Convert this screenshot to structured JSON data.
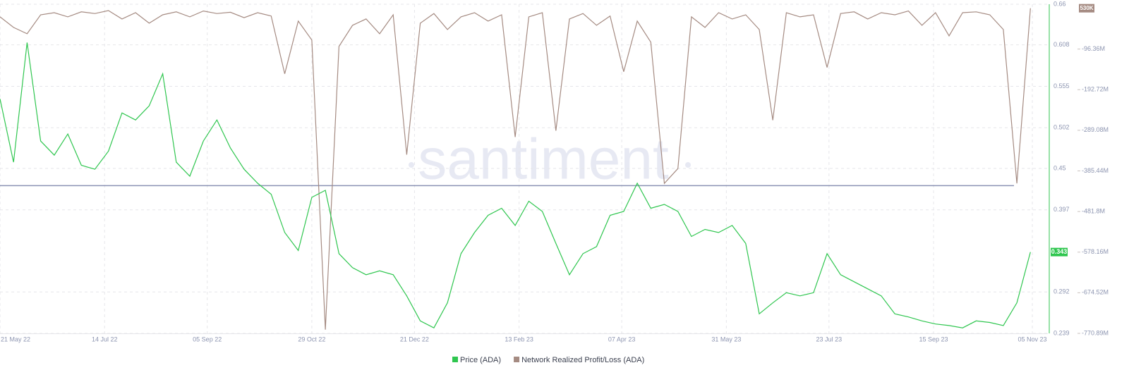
{
  "chart_data": {
    "type": "line",
    "watermark": "santiment",
    "x": [
      "2022-05-21",
      "2022-05-28",
      "2022-06-04",
      "2022-06-11",
      "2022-06-18",
      "2022-06-25",
      "2022-07-02",
      "2022-07-09",
      "2022-07-16",
      "2022-07-23",
      "2022-07-30",
      "2022-08-06",
      "2022-08-13",
      "2022-08-20",
      "2022-08-27",
      "2022-09-03",
      "2022-09-10",
      "2022-09-17",
      "2022-09-24",
      "2022-10-01",
      "2022-10-08",
      "2022-10-15",
      "2022-10-22",
      "2022-10-29",
      "2022-11-05",
      "2022-11-12",
      "2022-11-19",
      "2022-11-26",
      "2022-12-03",
      "2022-12-10",
      "2022-12-17",
      "2022-12-24",
      "2022-12-31",
      "2023-01-07",
      "2023-01-14",
      "2023-01-21",
      "2023-01-28",
      "2023-02-04",
      "2023-02-11",
      "2023-02-18",
      "2023-02-25",
      "2023-03-04",
      "2023-03-11",
      "2023-03-18",
      "2023-03-25",
      "2023-04-01",
      "2023-04-08",
      "2023-04-15",
      "2023-04-22",
      "2023-04-29",
      "2023-05-06",
      "2023-05-13",
      "2023-05-20",
      "2023-05-27",
      "2023-06-03",
      "2023-06-10",
      "2023-06-17",
      "2023-06-24",
      "2023-07-01",
      "2023-07-08",
      "2023-07-15",
      "2023-07-22",
      "2023-07-29",
      "2023-08-05",
      "2023-08-12",
      "2023-08-19",
      "2023-08-26",
      "2023-09-02",
      "2023-09-09",
      "2023-09-16",
      "2023-09-23",
      "2023-09-30",
      "2023-10-07",
      "2023-10-14",
      "2023-10-21",
      "2023-10-28",
      "2023-11-04"
    ],
    "xlim": [
      "2022-05-21",
      "2023-11-13"
    ],
    "xticks": [
      {
        "value": "2022-05-21",
        "label": "21 May 22"
      },
      {
        "value": "2022-07-14",
        "label": "14 Jul 22"
      },
      {
        "value": "2022-09-05",
        "label": "05 Sep 22"
      },
      {
        "value": "2022-10-29",
        "label": "29 Oct 22"
      },
      {
        "value": "2022-12-21",
        "label": "21 Dec 22"
      },
      {
        "value": "2023-02-13",
        "label": "13 Feb 23"
      },
      {
        "value": "2023-04-07",
        "label": "07 Apr 23"
      },
      {
        "value": "2023-05-31",
        "label": "31 May 23"
      },
      {
        "value": "2023-07-23",
        "label": "23 Jul 23"
      },
      {
        "value": "2023-09-15",
        "label": "15 Sep 23"
      },
      {
        "value": "2023-11-05",
        "label": "05 Nov 23"
      }
    ],
    "ylim": [
      0.239,
      0.66
    ],
    "yticks": [
      0.239,
      0.292,
      0.397,
      0.45,
      0.502,
      0.555,
      0.608,
      0.66
    ],
    "y2lim": [
      -770890000,
      10000000
    ],
    "y2ticks": [
      {
        "value": -96360000,
        "label": "-96.36M"
      },
      {
        "value": -192720000,
        "label": "-192.72M"
      },
      {
        "value": -289080000,
        "label": "-289.08M"
      },
      {
        "value": -385440000,
        "label": "-385.44M"
      },
      {
        "value": -481800000,
        "label": "-481.8M"
      },
      {
        "value": -578160000,
        "label": "-578.16M"
      },
      {
        "value": -674520000,
        "label": "-674.52M"
      },
      {
        "value": -770890000,
        "label": "-770.89M"
      }
    ],
    "grid": true,
    "hline": {
      "value": 0.428,
      "color": "#8b93b4"
    },
    "series": [
      {
        "name": "Price (ADA)",
        "color": "#2fc64f",
        "values": [
          0.539,
          0.458,
          0.611,
          0.485,
          0.467,
          0.494,
          0.454,
          0.449,
          0.472,
          0.521,
          0.512,
          0.53,
          0.571,
          0.458,
          0.44,
          0.485,
          0.512,
          0.476,
          0.449,
          0.431,
          0.417,
          0.368,
          0.345,
          0.413,
          0.422,
          0.341,
          0.323,
          0.314,
          0.319,
          0.314,
          0.287,
          0.255,
          0.246,
          0.278,
          0.341,
          0.368,
          0.39,
          0.399,
          0.377,
          0.408,
          0.395,
          0.354,
          0.314,
          0.341,
          0.35,
          0.39,
          0.395,
          0.431,
          0.399,
          0.404,
          0.395,
          0.363,
          0.372,
          0.368,
          0.377,
          0.354,
          0.264,
          0.278,
          0.291,
          0.287,
          0.291,
          0.341,
          0.314,
          0.305,
          0.296,
          0.287,
          0.264,
          0.26,
          0.255,
          0.251,
          0.249,
          0.246,
          0.255,
          0.253,
          0.249,
          0.278,
          0.343
        ]
      },
      {
        "name": "Network Realized Profit/Loss (ADA)",
        "color": "#a58b82",
        "axis": "y2",
        "values": [
          -20000000.0,
          -45000000.0,
          -60000000.0,
          -15000000.0,
          -10000000.0,
          -20000000.0,
          -8000000.0,
          -12000000.0,
          -5000000.0,
          -25000000.0,
          -10000000.0,
          -35000000.0,
          -15000000.0,
          -8000000.0,
          -20000000.0,
          -6000000.0,
          -12000000.0,
          -9000000.0,
          -22000000.0,
          -10000000.0,
          -18000000.0,
          -155000000.0,
          -30000000.0,
          -75000000.0,
          -762000000.0,
          -90000000.0,
          -40000000.0,
          -25000000.0,
          -60000000.0,
          -15000000.0,
          -347000000.0,
          -35000000.0,
          -12000000.0,
          -50000000.0,
          -20000000.0,
          -10000000.0,
          -30000000.0,
          -15000000.0,
          -305000000.0,
          -20000000.0,
          -10000000.0,
          -290000000.0,
          -25000000.0,
          -12000000.0,
          -40000000.0,
          -18000000.0,
          -150000000.0,
          -30000000.0,
          -80000000.0,
          -415000000.0,
          -380000000.0,
          -20000000.0,
          -45000000.0,
          -10000000.0,
          -25000000.0,
          -15000000.0,
          -50000000.0,
          -265000000.0,
          -10000000.0,
          -20000000.0,
          -15000000.0,
          -140000000.0,
          -12000000.0,
          -8000000.0,
          -25000000.0,
          -10000000.0,
          -15000000.0,
          -6000000.0,
          -40000000.0,
          -10000000.0,
          -65000000.0,
          -10000000.0,
          -8000000.0,
          -15000000.0,
          -50000000.0,
          -415000000.0,
          530000
        ],
        "value_labels": [
          null,
          null,
          null,
          null,
          null,
          null,
          null,
          null,
          null,
          null,
          null,
          null,
          null,
          null,
          null,
          null,
          null,
          null,
          null,
          null,
          null,
          null,
          null,
          null,
          null,
          null,
          null,
          null,
          null,
          null,
          null,
          null,
          null,
          null,
          null,
          null,
          null,
          null,
          null,
          null,
          null,
          null,
          null,
          null,
          null,
          null,
          null,
          null,
          null,
          null,
          null,
          null,
          null,
          null,
          null,
          null,
          null,
          null,
          null,
          null,
          null,
          null,
          null,
          null,
          null,
          null,
          null,
          null,
          null,
          null,
          null,
          null,
          null,
          null,
          null,
          null,
          "530K"
        ]
      }
    ]
  }
}
